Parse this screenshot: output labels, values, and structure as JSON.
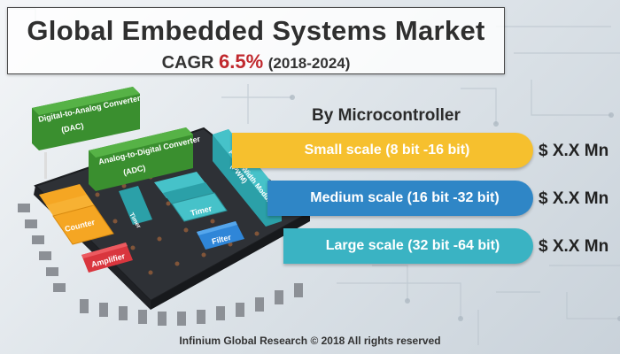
{
  "header": {
    "title": "Global Embedded Systems Market",
    "cagr_label": "CAGR",
    "cagr_value": "6.5%",
    "years": "(2018-2024)"
  },
  "section": {
    "title": "By Microcontroller"
  },
  "segments": [
    {
      "label": "Small scale (8 bit -16 bit)",
      "value": "$ X.X Mn",
      "color": "#f6c02e"
    },
    {
      "label": "Medium scale (16 bit -32 bit)",
      "value": "$ X.X Mn",
      "color": "#2f86c6"
    },
    {
      "label": "Large scale (32 bit -64 bit)",
      "value": "$ X.X Mn",
      "color": "#3ab3c3"
    }
  ],
  "chip_components": {
    "dac_line1": "Digital-to-Analog Converter",
    "dac_line2": "(DAC)",
    "adc_line1": "Analog-to-Digital Converter",
    "adc_line2": "(ADC)",
    "pwm_line1": "Pulse Width Modulator",
    "pwm_line2": "(PWM)",
    "counter": "Counter",
    "timer_small": "Timer",
    "timer": "Timer",
    "filter": "Filter",
    "amplifier": "Amplifier"
  },
  "footer": {
    "text": "Infinium Global Research © 2018 All rights reserved"
  }
}
